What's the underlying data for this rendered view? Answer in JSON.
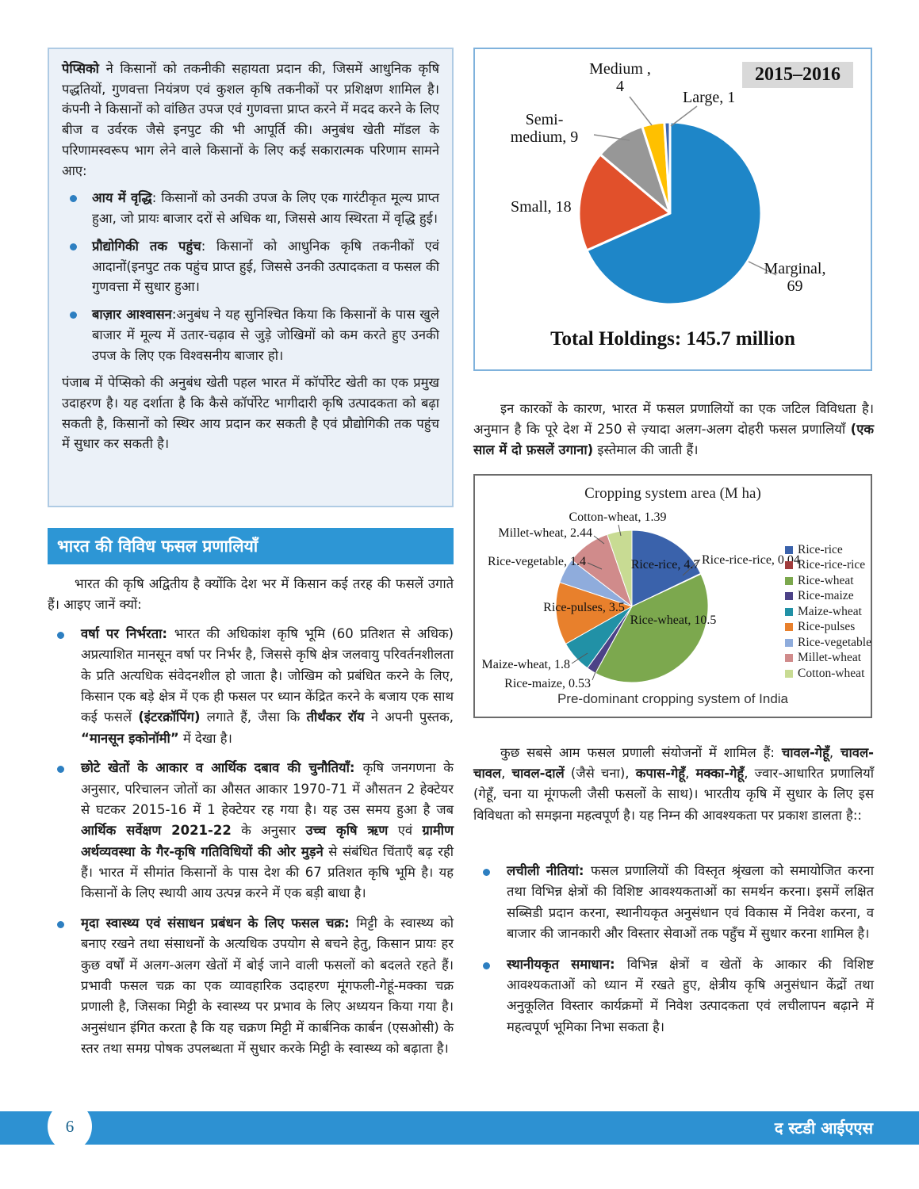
{
  "accent": {
    "blue": "#2D91D2",
    "box_bg": "#EBF1F8",
    "box_border": "#AFCBE4",
    "bullet_dot": "#2D7FC1"
  },
  "info_box": {
    "intro": [
      {
        "t": "पेप्सिको",
        "b": true
      },
      {
        "t": " ने किसानों को तकनीकी सहायता प्रदान की, जिसमें आधुनिक कृषि पद्धतियों, गुणवत्ता नियंत्रण एवं कुशल कृषि तकनीकों पर प्रशिक्षण शामिल है। कंपनी ने किसानों को वांछित उपज एवं गुणवत्ता प्राप्त करने में मदद करने के लिए बीज व उर्वरक जैसे इनपुट की भी आपूर्ति की। अनुबंध खेती मॉडल के परिणामस्वरूप भाग लेने वाले किसानों के लिए कई सकारात्मक परिणाम सामने आए:"
      }
    ],
    "bullets": [
      [
        {
          "t": "आय में वृद्धि",
          "b": true
        },
        {
          "t": ": किसानों को उनकी उपज के लिए एक गारंटीकृत मूल्य प्राप्त हुआ, जो प्रायः बाजार दरों से अधिक था, जिससे आय स्थिरता में वृद्धि हुई।"
        }
      ],
      [
        {
          "t": "प्रौद्योगिकी तक पहुंच",
          "b": true
        },
        {
          "t": ": किसानों को आधुनिक कृषि तकनीकों एवं आदानों(इनपुट तक पहुंच प्राप्त हुई, जिससे उनकी उत्पादकता व फसल की गुणवत्ता में सुधार हुआ।"
        }
      ],
      [
        {
          "t": "बाज़ार आश्वासन",
          "b": true
        },
        {
          "t": ":अनुबंध ने यह सुनिश्चित किया कि किसानों के पास खुले बाजार में मूल्य में उतार-चढ़ाव से जुड़े जोखिमों को कम करते हुए उनकी उपज के लिए एक विश्वसनीय बाजार हो।"
        }
      ]
    ],
    "outro": "पंजाब में पेप्सिको की अनुबंध खेती पहल भारत में कॉर्पोरेट खेती का एक प्रमुख उदाहरण है। यह दर्शाता है कि कैसे कॉर्पोरेट भागीदारी कृषि उत्पादकता को बढ़ा सकती है, किसानों को स्थिर आय प्रदान कर सकती है एवं प्रौद्योगिकी तक पहुंच में सुधार कर सकती है।"
  },
  "section_header": "भारत की विविध फसल प्रणालियाँ",
  "left_intro": "भारत की कृषि अद्वितीय है क्योंकि देश भर में किसान कई तरह की फसलें उगाते हैं। आइए जानें क्यों:",
  "left_bullets": [
    [
      {
        "t": "वर्षा पर निर्भरता: ",
        "b": true
      },
      {
        "t": "भारत की अधिकांश कृषि भूमि (60 प्रतिशत से अधिक) अप्रत्याशित मानसून वर्षा पर निर्भर है, जिससे कृषि क्षेत्र जलवायु परिवर्तनशीलता के प्रति अत्यधिक संवेदनशील हो जाता है। जोखिम को प्रबंधित करने के लिए, किसान एक बड़े क्षेत्र में एक ही फसल पर ध्यान केंद्रित करने के बजाय एक साथ कई फसलें "
      },
      {
        "t": "(इंटरक्रॉपिंग)",
        "b": true
      },
      {
        "t": " लगाते हैं, जैसा कि "
      },
      {
        "t": "तीर्थंकर रॉय",
        "b": true
      },
      {
        "t": " ने अपनी पुस्तक, "
      },
      {
        "t": "“मानसून इकोनॉमी”",
        "b": true
      },
      {
        "t": " में देखा है।"
      }
    ],
    [
      {
        "t": "छोटे खेतों के आकार व आर्थिक दबाव की चुनौतियाँ: ",
        "b": true
      },
      {
        "t": "कृषि जनगणना के अनुसार, परिचालन जोतों का औसत आकार 1970-71 में औसतन 2 हेक्टेयर से घटकर 2015-16 में 1 हेक्टेयर रह गया है। यह उस समय हुआ है जब "
      },
      {
        "t": "आर्थिक सर्वेक्षण 2021-22",
        "b": true
      },
      {
        "t": " के अनुसार "
      },
      {
        "t": "उच्च कृषि ऋण",
        "b": true
      },
      {
        "t": " एवं "
      },
      {
        "t": "ग्रामीण अर्थव्यवस्था के गैर-कृषि गतिविधियों की ओर मुड़ने",
        "b": true
      },
      {
        "t": " से संबंधित चिंताएँ बढ़ रही हैं। भारत में सीमांत किसानों के पास देश की 67 प्रतिशत कृषि भूमि है। यह किसानों के लिए स्थायी आय उत्पन्न करने में एक बड़ी बाधा है।"
      }
    ],
    [
      {
        "t": "मृदा स्वास्थ्य एवं संसाधन प्रबंधन के लिए फसल चक्र: ",
        "b": true
      },
      {
        "t": "मिट्टी के स्वास्थ्य को बनाए रखने तथा संसाधनों के अत्यधिक उपयोग से बचने हेतु, किसान प्रायः हर कुछ वर्षों में अलग-अलग खेतों में बोई जाने वाली फसलों को बदलते रहते हैं। प्रभावी फसल चक्र का एक व्यावहारिक उदाहरण मूंगफली-गेहूं-मक्का चक्र प्रणाली है, जिसका मिट्टी के स्वास्थ्य पर प्रभाव के लिए अध्ययन किया गया है। अनुसंधान इंगित करता है कि यह चक्रण मिट्टी में कार्बनिक कार्बन (एसओसी) के स्तर तथा समग्र पोषक उपलब्धता में सुधार करके मिट्टी के स्वास्थ्य को बढ़ाता है।"
      }
    ]
  ],
  "right_para1": [
    {
      "t": "इन कारकों के कारण, भारत में फसल प्रणालियों का एक जटिल विविधता है। अनुमान है कि पूरे देश में 250 से ज़्यादा अलग-अलग दोहरी फसल प्रणालियाँ "
    },
    {
      "t": "(एक साल में दो फ़सलें उगाना)",
      "b": true
    },
    {
      "t": " इस्तेमाल की जाती हैं।"
    }
  ],
  "right_para2": [
    {
      "t": "कुछ सबसे आम फसल प्रणाली संयोजनों में शामिल हैं: "
    },
    {
      "t": "चावल-गेहूँ",
      "b": true
    },
    {
      "t": ", "
    },
    {
      "t": "चावल-चावल",
      "b": true
    },
    {
      "t": ", "
    },
    {
      "t": "चावल-दालें",
      "b": true
    },
    {
      "t": " (जैसे चना), "
    },
    {
      "t": "कपास-गेहूँ",
      "b": true
    },
    {
      "t": ", "
    },
    {
      "t": "मक्का-गेहूँ",
      "b": true
    },
    {
      "t": ", ज्वार-आधारित प्रणालियाँ (गेहूँ, चना या मूंगफली जैसी फसलों के साथ)। भारतीय कृषि में सुधार के लिए इस विविधता को समझना महत्वपूर्ण है। यह निम्न की आवश्यकता पर प्रकाश डालता है::"
    }
  ],
  "right_bullets": [
    [
      {
        "t": "लचीली नीतियां: ",
        "b": true
      },
      {
        "t": "फसल प्रणालियों की विस्तृत श्रृंखला को समायोजित करना तथा विभिन्न क्षेत्रों की विशिष्ट आवश्यकताओं का समर्थन करना। इसमें लक्षित सब्सिडी प्रदान करना, स्थानीयकृत अनुसंधान एवं विकास में निवेश करना, व बाजार की जानकारी और विस्तार सेवाओं तक पहुँच में सुधार करना शामिल है।"
      }
    ],
    [
      {
        "t": "स्थानीयकृत समाधान: ",
        "b": true
      },
      {
        "t": "विभिन्न क्षेत्रों व खेतों के आकार की विशिष्ट आवश्यकताओं को ध्यान में रखते हुए, क्षेत्रीय कृषि अनुसंधान केंद्रों तथा अनुकूलित विस्तार कार्यक्रमों में निवेश उत्पादकता एवं लचीलापन बढ़ाने में महत्वपूर्ण भूमिका निभा सकता है।"
      }
    ]
  ],
  "chart_data": [
    {
      "type": "pie",
      "year_badge": "2015–2016",
      "total_label": "Total Holdings: 145.7 million",
      "slices": [
        {
          "name": "Marginal",
          "value": 69,
          "color": "#1E86C8",
          "label_lines": [
            "Marginal,",
            "69"
          ]
        },
        {
          "name": "Small",
          "value": 18,
          "color": "#E1502B",
          "label_lines": [
            "Small, 18"
          ]
        },
        {
          "name": "Semi-medium",
          "value": 9,
          "color": "#979797",
          "label_lines": [
            "Semi-",
            "medium, 9"
          ]
        },
        {
          "name": "Medium",
          "value": 4,
          "color": "#FFC000",
          "label_lines": [
            "Medium ,",
            "4"
          ]
        },
        {
          "name": "Large",
          "value": 1,
          "color": "#3E66B0",
          "label_lines": [
            "Large, 1"
          ]
        }
      ]
    },
    {
      "type": "pie",
      "title": "Cropping system area (M ha)",
      "caption": "Pre-dominant cropping system of India",
      "legend_position": "right",
      "slices": [
        {
          "name": "Rice-rice",
          "value": 4.7,
          "color": "#3A62AB",
          "label": "Rice-rice, 4.7"
        },
        {
          "name": "Rice-rice-rice",
          "value": 0.04,
          "color": "#A03C3C",
          "label": "Rice-rice-rice, 0.04"
        },
        {
          "name": "Rice-wheat",
          "value": 10.5,
          "color": "#7CA84E",
          "label": "Rice-wheat, 10.5"
        },
        {
          "name": "Rice-maize",
          "value": 0.53,
          "color": "#4C4287",
          "label": "Rice-maize, 0.53"
        },
        {
          "name": "Maize-wheat",
          "value": 1.8,
          "color": "#2191A6",
          "label": "Maize-wheat, 1.8"
        },
        {
          "name": "Rice-pulses",
          "value": 3.5,
          "color": "#E8802C",
          "label": "Rice-pulses, 3.5"
        },
        {
          "name": "Rice-vegetable",
          "value": 1.4,
          "color": "#8FACDC",
          "label": "Rice-vegetable, 1.4"
        },
        {
          "name": "Millet-wheat",
          "value": 2.44,
          "color": "#D08B8B",
          "label": "Millet-wheat, 2.44"
        },
        {
          "name": "Cotton-wheat",
          "value": 1.39,
          "color": "#C8DB93",
          "label": "Cotton-wheat, 1.39"
        }
      ]
    }
  ],
  "footer": {
    "page": "6",
    "brand": "द स्टडी आईएएस"
  }
}
